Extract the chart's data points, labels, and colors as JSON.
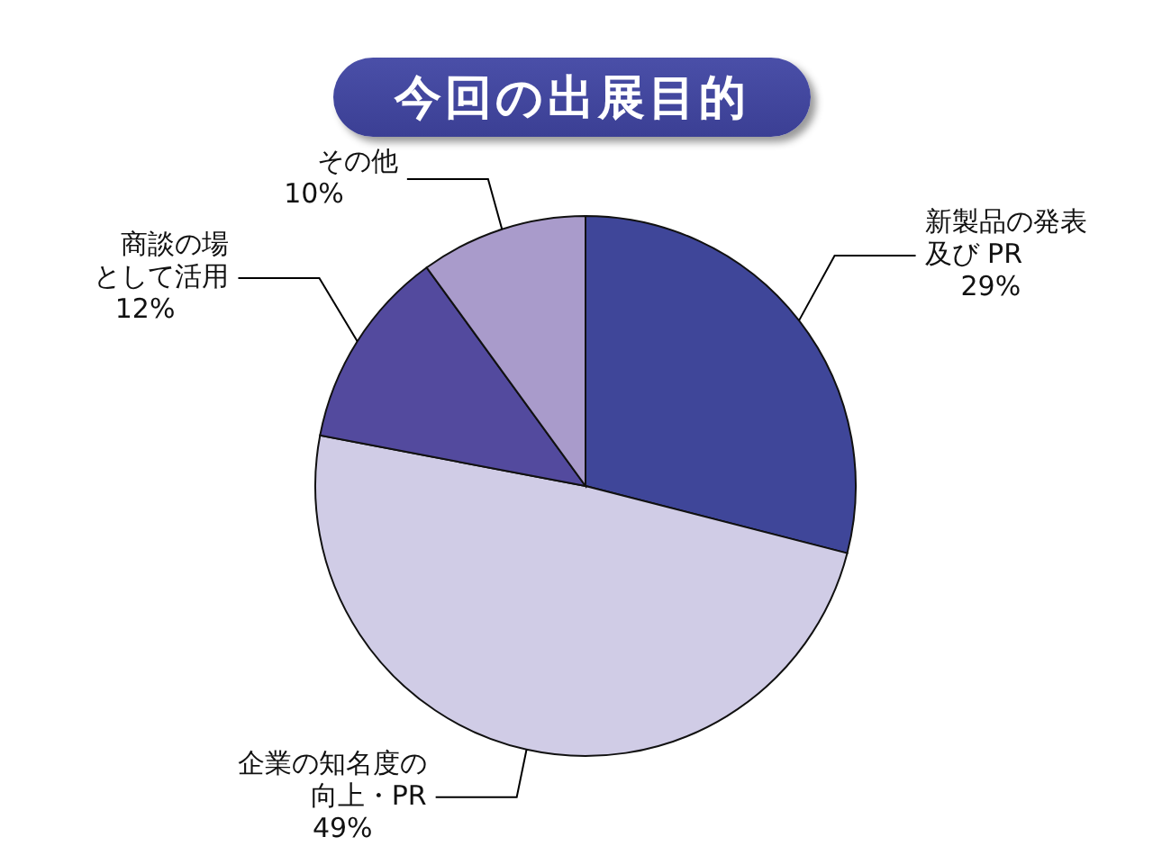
{
  "chart_data": {
    "type": "pie",
    "title": "今回の出展目的",
    "categories": [
      "新製品の発表及び PR",
      "企業の知名度の向上・PR",
      "商談の場として活用",
      "その他"
    ],
    "values": [
      29,
      49,
      12,
      10
    ],
    "value_labels": [
      "29%",
      "49%",
      "12%",
      "10%"
    ],
    "colors": [
      "#3f4699",
      "#d0cce6",
      "#534a9e",
      "#a99bcb"
    ]
  }
}
